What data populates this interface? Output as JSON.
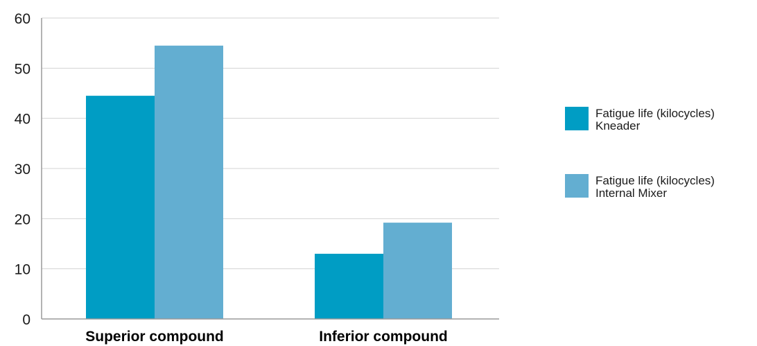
{
  "chart_data": {
    "type": "bar",
    "categories": [
      "Superior compound",
      "Inferior compound"
    ],
    "series": [
      {
        "name": "Fatigue life (kilocycles)\nKneader",
        "name_lines": [
          "Fatigue life (kilocycles)",
          "Kneader"
        ],
        "values": [
          44.5,
          13
        ],
        "color": "#009dc4"
      },
      {
        "name": "Fatigue life (kilocycles)\nInternal Mixer",
        "name_lines": [
          "Fatigue life (kilocycles)",
          "Internal Mixer"
        ],
        "values": [
          54.5,
          19.2
        ],
        "color": "#63aed1"
      }
    ],
    "yticks": [
      0,
      10,
      20,
      30,
      40,
      50,
      60
    ],
    "ylim": [
      0,
      60
    ],
    "title": "",
    "xlabel": "",
    "ylabel": "",
    "grid": true,
    "legend_position": "right"
  },
  "colors": {
    "grid": "#d3d3d3",
    "axis": "#9a9a9a"
  }
}
